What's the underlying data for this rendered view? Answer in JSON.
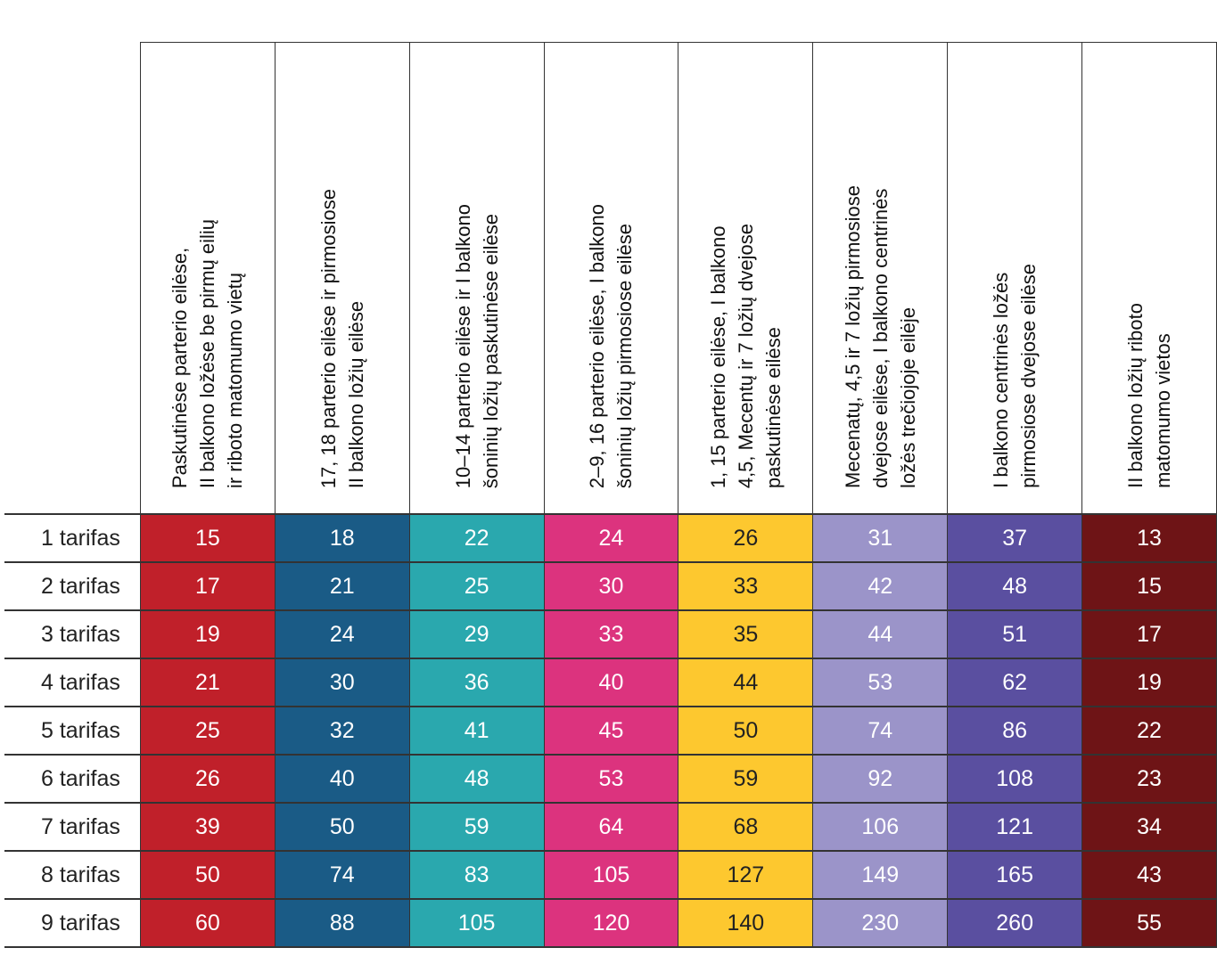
{
  "columns": [
    {
      "lines": [
        "Paskutinėse parterio eilėse,",
        "II balkono ložėse be pirmų eilių",
        "ir riboto matomumo vietų"
      ],
      "color": "#c0202a"
    },
    {
      "lines": [
        "17, 18 parterio eilėse ir pirmosiose",
        "II balkono ložių eilėse"
      ],
      "color": "#1a5b86"
    },
    {
      "lines": [
        "10–14 parterio eilėse ir I balkono",
        "šoninių ložių paskutinėse eilėse"
      ],
      "color": "#2aa8ae"
    },
    {
      "lines": [
        "2–9, 16 parterio eilėse, I balkono",
        "šoninių ložių pirmosiose eilėse"
      ],
      "color": "#dc337e"
    },
    {
      "lines": [
        "1, 15 parterio eilėse, I balkono",
        "4,5, Mecentų ir 7 ložių dvejose",
        "paskutinėse eilėse"
      ],
      "color": "#fdc82f"
    },
    {
      "lines": [
        "Mecenatų, 4,5 ir 7 ložių pirmosiose",
        "dvejose eilėse, I balkono centrinės",
        "ložės trečiojoje eilėje"
      ],
      "color": "#9b94c9"
    },
    {
      "lines": [
        "I balkono centrinės ložės",
        "pirmosiose dvejose eilėse"
      ],
      "color": "#5a4fa0"
    },
    {
      "lines": [
        "II balkono ložių riboto",
        "matomumo vietos"
      ],
      "color": "#6e1416"
    }
  ],
  "rows": [
    {
      "label": "1 tarifas",
      "values": [
        "15",
        "18",
        "22",
        "24",
        "26",
        "31",
        "37",
        "13"
      ]
    },
    {
      "label": "2 tarifas",
      "values": [
        "17",
        "21",
        "25",
        "30",
        "33",
        "42",
        "48",
        "15"
      ]
    },
    {
      "label": "3 tarifas",
      "values": [
        "19",
        "24",
        "29",
        "33",
        "35",
        "44",
        "51",
        "17"
      ]
    },
    {
      "label": "4 tarifas",
      "values": [
        "21",
        "30",
        "36",
        "40",
        "44",
        "53",
        "62",
        "19"
      ]
    },
    {
      "label": "5 tarifas",
      "values": [
        "25",
        "32",
        "41",
        "45",
        "50",
        "74",
        "86",
        "22"
      ]
    },
    {
      "label": "6 tarifas",
      "values": [
        "26",
        "40",
        "48",
        "53",
        "59",
        "92",
        "108",
        "23"
      ]
    },
    {
      "label": "7 tarifas",
      "values": [
        "39",
        "50",
        "59",
        "64",
        "68",
        "106",
        "121",
        "34"
      ]
    },
    {
      "label": "8 tarifas",
      "values": [
        "50",
        "74",
        "83",
        "105",
        "127",
        "149",
        "165",
        "43"
      ]
    },
    {
      "label": "9 tarifas",
      "values": [
        "60",
        "88",
        "105",
        "120",
        "140",
        "230",
        "260",
        "55"
      ]
    }
  ]
}
